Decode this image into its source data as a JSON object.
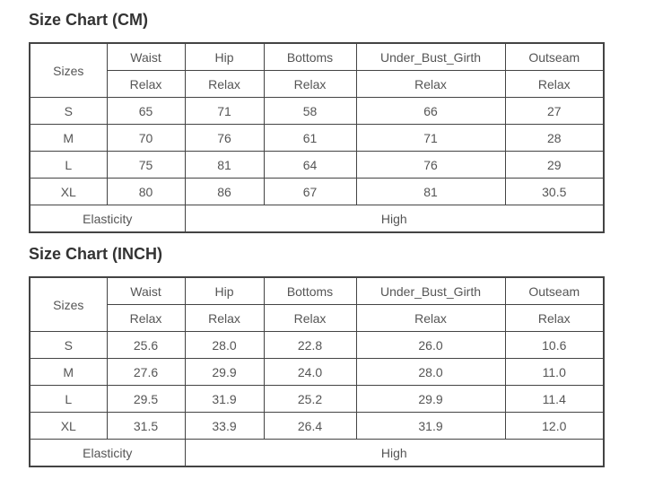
{
  "tables": [
    {
      "title": "Size Chart (CM)",
      "sizes_label": "Sizes",
      "columns": [
        "Waist",
        "Hip",
        "Bottoms",
        "Under_Bust_Girth",
        "Outseam"
      ],
      "subheader": "Relax",
      "rows": [
        [
          "S",
          "65",
          "71",
          "58",
          "66",
          "27"
        ],
        [
          "M",
          "70",
          "76",
          "61",
          "71",
          "28"
        ],
        [
          "L",
          "75",
          "81",
          "64",
          "76",
          "29"
        ],
        [
          "XL",
          "80",
          "86",
          "67",
          "81",
          "30.5"
        ]
      ],
      "elasticity_label": "Elasticity",
      "elasticity_value": "High"
    },
    {
      "title": "Size Chart (INCH)",
      "sizes_label": "Sizes",
      "columns": [
        "Waist",
        "Hip",
        "Bottoms",
        "Under_Bust_Girth",
        "Outseam"
      ],
      "subheader": "Relax",
      "rows": [
        [
          "S",
          "25.6",
          "28.0",
          "22.8",
          "26.0",
          "10.6"
        ],
        [
          "M",
          "27.6",
          "29.9",
          "24.0",
          "28.0",
          "11.0"
        ],
        [
          "L",
          "29.5",
          "31.9",
          "25.2",
          "29.9",
          "11.4"
        ],
        [
          "XL",
          "31.5",
          "33.9",
          "26.4",
          "31.9",
          "12.0"
        ]
      ],
      "elasticity_label": "Elasticity",
      "elasticity_value": "High"
    }
  ]
}
